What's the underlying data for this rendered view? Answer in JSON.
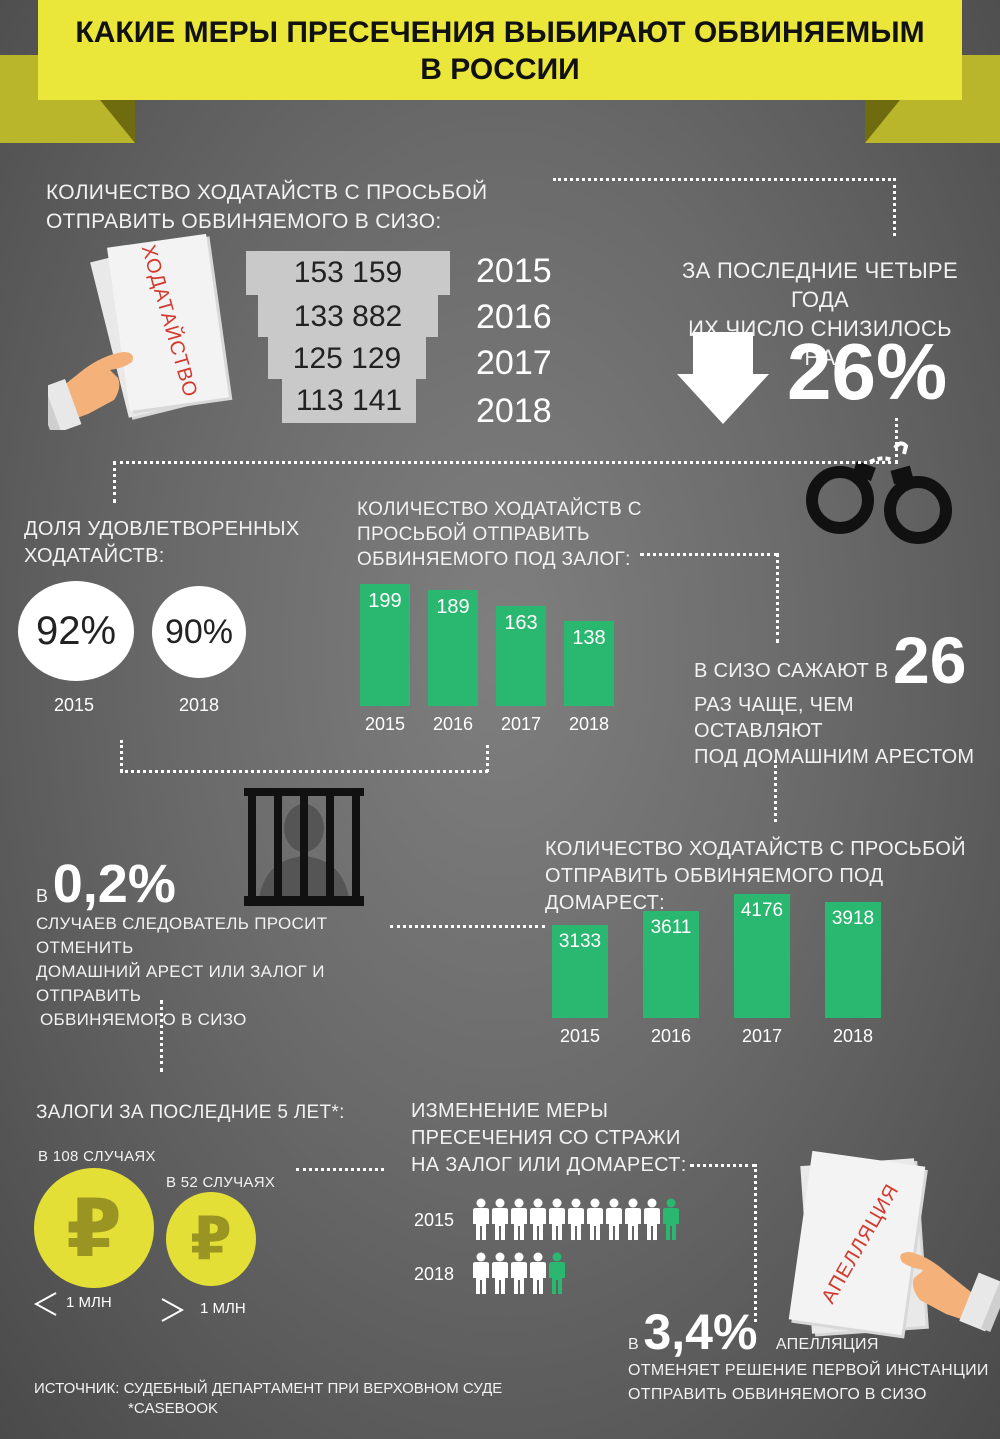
{
  "title": "КАКИЕ МЕРЫ ПРЕСЕЧЕНИЯ ВЫБИРАЮТ ОБВИНЯЕМЫМ В РОССИИ",
  "title_line1": "КАКИЕ МЕРЫ ПРЕСЕЧЕНИЯ ВЫБИРАЮТ ОБВИНЯЕМЫМ",
  "title_line2": "В РОССИИ",
  "colors": {
    "banner": "#eae73a",
    "green": "#2ab770",
    "coin": "#e4df36",
    "stamp": "#d23a2f"
  },
  "sizo": {
    "label_line1": "КОЛИЧЕСТВО ХОДАТАЙСТВ С ПРОСЬБОЙ",
    "label_line2": "ОТПРАВИТЬ ОБВИНЯЕМОГО В СИЗО:",
    "stamp": "ХОДАТАЙСТВО",
    "rows": [
      {
        "value": "153 159",
        "year": "2015"
      },
      {
        "value": "133 882",
        "year": "2016"
      },
      {
        "value": "125 129",
        "year": "2017"
      },
      {
        "value": "113 141",
        "year": "2018"
      }
    ]
  },
  "decline": {
    "label_line1": "ЗА ПОСЛЕДНИЕ ЧЕТЫРЕ ГОДА",
    "label_line2": "ИХ ЧИСЛО СНИЗИЛОСЬ НА",
    "value": "26%",
    "icon": "down-arrow-icon"
  },
  "share": {
    "label_line1": "ДОЛЯ УДОВЛЕТВОРЕННЫХ",
    "label_line2": "ХОДАТАЙСТВ:",
    "items": [
      {
        "value": "92%",
        "year": "2015"
      },
      {
        "value": "90%",
        "year": "2018"
      }
    ]
  },
  "bail": {
    "label_line1": "КОЛИЧЕСТВО ХОДАТАЙСТВ С",
    "label_line2": "ПРОСЬБОЙ ОТПРАВИТЬ",
    "label_line3": "ОБВИНЯЕМОГО ПОД ЗАЛОГ:",
    "chart_data": {
      "type": "bar",
      "categories": [
        "2015",
        "2016",
        "2017",
        "2018"
      ],
      "values": [
        199,
        189,
        163,
        138
      ]
    }
  },
  "ratio": {
    "prefix": "В СИЗО САЖАЮТ В",
    "value": "26",
    "line2": "РАЗ ЧАЩЕ, ЧЕМ ОСТАВЛЯЮТ",
    "line3": "ПОД ДОМАШНИМ АРЕСТОМ"
  },
  "cancel": {
    "prefix": "В",
    "value": "0,2%",
    "line1": "СЛУЧАЕВ СЛЕДОВАТЕЛЬ ПРОСИТ ОТМЕНИТЬ",
    "line2": "ДОМАШНИЙ АРЕСТ ИЛИ ЗАЛОГ И ОТПРАВИТЬ",
    "line3": "ОБВИНЯЕМОГО В СИЗО"
  },
  "house_arrest": {
    "label_line1": "КОЛИЧЕСТВО ХОДАТАЙСТВ С ПРОСЬБОЙ",
    "label_line2": "ОТПРАВИТЬ ОБВИНЯЕМОГО ПОД ДОМАРЕСТ:",
    "chart_data": {
      "type": "bar",
      "categories": [
        "2015",
        "2016",
        "2017",
        "2018"
      ],
      "values": [
        3133,
        3611,
        4176,
        3918
      ]
    }
  },
  "pledges": {
    "label": "ЗАЛОГИ ЗА ПОСЛЕДНИЕ 5 ЛЕТ*:",
    "left": {
      "caption": "В 108 СЛУЧАЯХ",
      "compare": "1 МЛН",
      "symbol": "₽"
    },
    "right": {
      "caption": "В 52 СЛУЧАЯХ",
      "compare": "1 МЛН",
      "symbol": "₽"
    }
  },
  "change": {
    "label_line1": "ИЗМЕНЕНИЕ МЕРЫ",
    "label_line2": "ПРЕСЕЧЕНИЯ  СО СТРАЖИ",
    "label_line3": "НА ЗАЛОГ ИЛИ ДОМАРЕСТ:",
    "rows": [
      {
        "year": "2015",
        "white": 10,
        "green": 1
      },
      {
        "year": "2018",
        "white": 4,
        "green": 1
      }
    ]
  },
  "appeal": {
    "stamp": "АПЕЛЛЯЦИЯ",
    "prefix": "В",
    "value": "3,4%",
    "word": "АПЕЛЛЯЦИЯ",
    "line2": "ОТМЕНЯЕТ РЕШЕНИЕ ПЕРВОЙ ИНСТАНЦИИ",
    "line3": "ОТПРАВИТЬ ОБВИНЯЕМОГО  В СИЗО"
  },
  "source": {
    "line1": "ИСТОЧНИК: СУДЕБНЫЙ ДЕПАРТАМЕНТ ПРИ ВЕРХОВНОМ СУДЕ",
    "line2": "*CASEBOOK"
  }
}
